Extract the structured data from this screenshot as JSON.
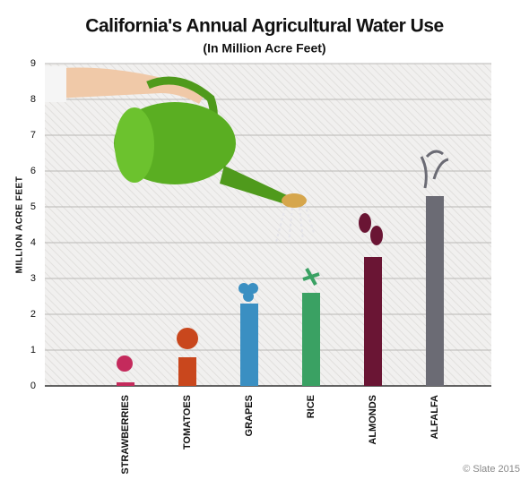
{
  "chart_data": {
    "type": "bar",
    "title": "California's Annual Agricultural Water Use",
    "subtitle": "(In Million Acre Feet)",
    "y_label": "MILLION ACRE FEET",
    "credit": "© Slate 2015",
    "categories": [
      "STRAWBERRIES",
      "TOMATOES",
      "GRAPES",
      "RICE",
      "ALMONDS",
      "ALFALFA"
    ],
    "values": [
      0.1,
      0.8,
      2.3,
      2.6,
      3.6,
      5.3
    ],
    "colors": [
      "#c42a5c",
      "#c9471d",
      "#3a8fc2",
      "#3aa163",
      "#6a1534",
      "#6b6b74"
    ],
    "ylim": [
      0,
      9
    ],
    "yticks": [
      0,
      1,
      2,
      3,
      4,
      5,
      6,
      7,
      8,
      9
    ],
    "grid": true
  }
}
